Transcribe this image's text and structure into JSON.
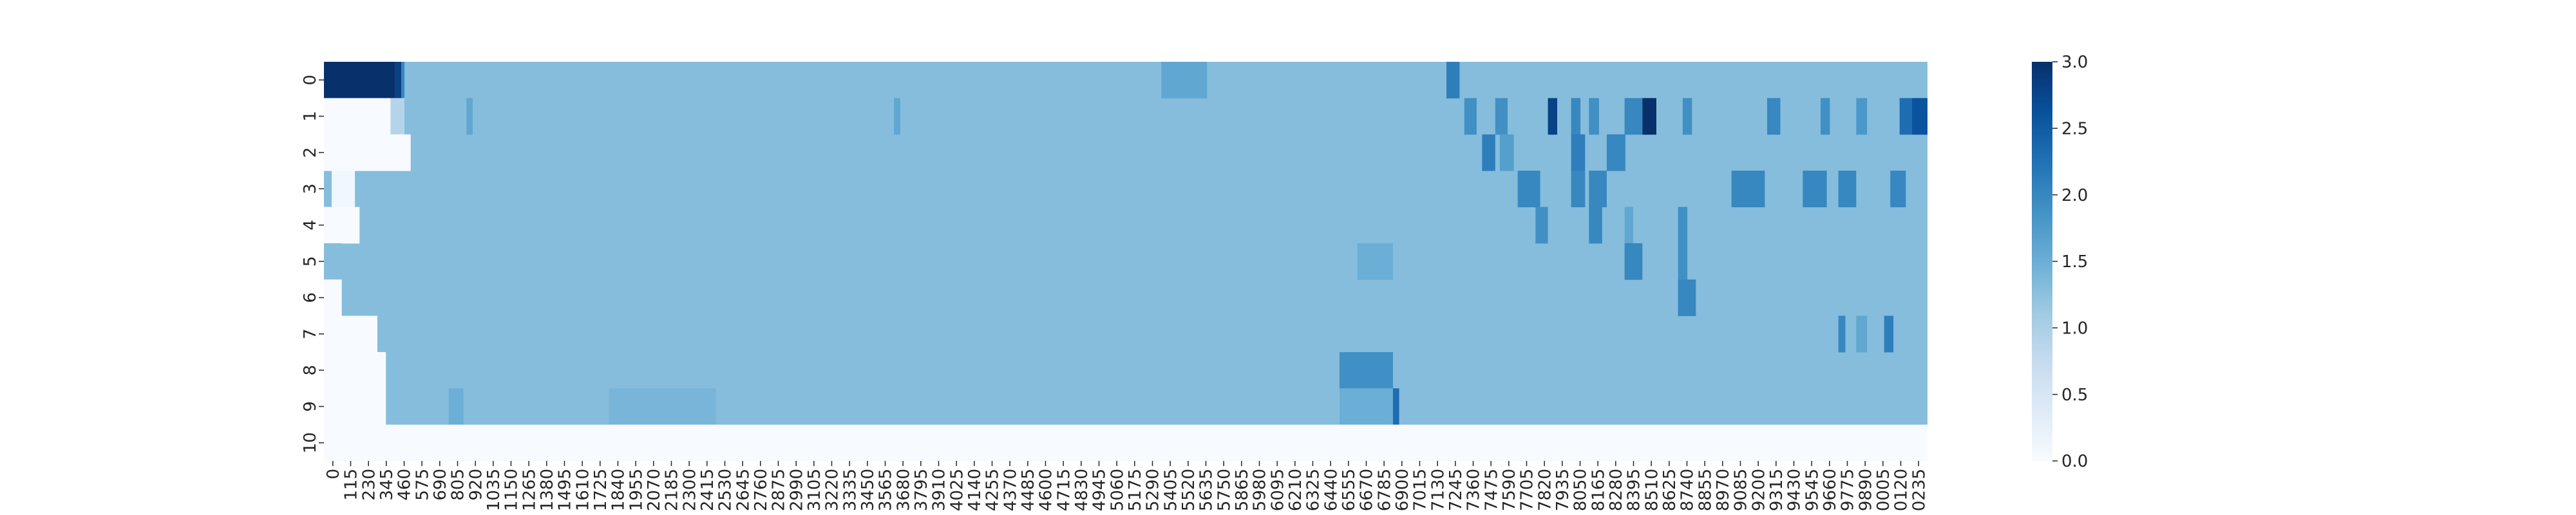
{
  "chart_data": {
    "type": "heatmap",
    "title": "",
    "xlabel": "",
    "ylabel": "",
    "rows": [
      "0",
      "1",
      "2",
      "3",
      "4",
      "5",
      "6",
      "7",
      "8",
      "9",
      "10"
    ],
    "x_tick_labels": [
      "0",
      "115",
      "230",
      "345",
      "460",
      "575",
      "690",
      "805",
      "920",
      "1035",
      "1150",
      "1265",
      "1380",
      "1495",
      "1610",
      "1725",
      "1840",
      "1955",
      "2070",
      "2185",
      "2300",
      "2415",
      "2530",
      "2645",
      "2760",
      "2875",
      "2990",
      "3105",
      "3220",
      "3335",
      "3450",
      "3565",
      "3680",
      "3795",
      "3910",
      "4025",
      "4140",
      "4255",
      "4370",
      "4485",
      "4600",
      "4715",
      "4830",
      "4945",
      "5060",
      "5175",
      "5290",
      "5405",
      "5520",
      "5635",
      "5750",
      "5865",
      "5980",
      "6095",
      "6210",
      "6325",
      "6440",
      "6555",
      "6670",
      "6785",
      "6900",
      "7015",
      "7130",
      "7245",
      "7360",
      "7475",
      "7590",
      "7705",
      "7820",
      "7935",
      "8050",
      "8165",
      "8280",
      "8395",
      "8510",
      "8625",
      "8740",
      "8855",
      "8970",
      "9085",
      "9200",
      "9315",
      "9430",
      "9545",
      "9660",
      "9775",
      "9890",
      "0005",
      "0120",
      "0235"
    ],
    "colorbar": {
      "min": 0.0,
      "max": 3.0,
      "ticks": [
        "0.0",
        "0.5",
        "1.0",
        "1.5",
        "2.0",
        "2.5",
        "3.0"
      ],
      "colormap": "Blues"
    },
    "baseline_value": 1.3,
    "leading_zero_cells": [
      0,
      0,
      0,
      0,
      0,
      0,
      0,
      0,
      0,
      0,
      0
    ],
    "segments": [
      {
        "row": 0,
        "from": 0,
        "to": 460,
        "value": 3.0
      },
      {
        "row": 0,
        "from": 460,
        "to": 500,
        "value": 2.8
      },
      {
        "row": 0,
        "from": 500,
        "to": 520,
        "value": 2.0
      },
      {
        "row": 0,
        "from": 5405,
        "to": 5700,
        "value": 1.6
      },
      {
        "row": 0,
        "from": 7245,
        "to": 7330,
        "value": 2.1
      },
      {
        "row": 1,
        "from": 0,
        "to": 430,
        "value": 0.0
      },
      {
        "row": 1,
        "from": 430,
        "to": 520,
        "value": 0.9
      },
      {
        "row": 1,
        "from": 920,
        "to": 960,
        "value": 1.6
      },
      {
        "row": 1,
        "from": 3680,
        "to": 3720,
        "value": 1.6
      },
      {
        "row": 1,
        "from": 7360,
        "to": 7440,
        "value": 1.9
      },
      {
        "row": 1,
        "from": 7560,
        "to": 7640,
        "value": 1.9
      },
      {
        "row": 1,
        "from": 7900,
        "to": 7960,
        "value": 2.8
      },
      {
        "row": 1,
        "from": 8050,
        "to": 8110,
        "value": 2.0
      },
      {
        "row": 1,
        "from": 8165,
        "to": 8230,
        "value": 1.9
      },
      {
        "row": 1,
        "from": 8395,
        "to": 8510,
        "value": 2.0
      },
      {
        "row": 1,
        "from": 8510,
        "to": 8600,
        "value": 3.0
      },
      {
        "row": 1,
        "from": 8770,
        "to": 8830,
        "value": 1.9
      },
      {
        "row": 1,
        "from": 9315,
        "to": 9400,
        "value": 2.0
      },
      {
        "row": 1,
        "from": 9660,
        "to": 9720,
        "value": 1.9
      },
      {
        "row": 1,
        "from": 9890,
        "to": 9960,
        "value": 1.8
      },
      {
        "row": 1,
        "from": 120,
        "to": 200,
        "value": 2.3,
        "segment_wraps": true
      },
      {
        "row": 1,
        "from": 200,
        "to": 300,
        "value": 2.6,
        "segment_wraps": true
      },
      {
        "row": 2,
        "from": 0,
        "to": 560,
        "value": 0.0
      },
      {
        "row": 2,
        "from": 7475,
        "to": 7560,
        "value": 2.1
      },
      {
        "row": 2,
        "from": 7590,
        "to": 7680,
        "value": 1.7
      },
      {
        "row": 2,
        "from": 8050,
        "to": 8140,
        "value": 2.1
      },
      {
        "row": 2,
        "from": 8280,
        "to": 8400,
        "value": 2.0
      },
      {
        "row": 3,
        "from": 50,
        "to": 200,
        "value": 0.1
      },
      {
        "row": 3,
        "from": 7705,
        "to": 7850,
        "value": 2.0
      },
      {
        "row": 3,
        "from": 8050,
        "to": 8140,
        "value": 2.0
      },
      {
        "row": 3,
        "from": 8165,
        "to": 8280,
        "value": 2.0
      },
      {
        "row": 3,
        "from": 9085,
        "to": 9300,
        "value": 2.0
      },
      {
        "row": 3,
        "from": 9545,
        "to": 9700,
        "value": 2.0
      },
      {
        "row": 3,
        "from": 9775,
        "to": 9890,
        "value": 2.0
      },
      {
        "row": 3,
        "from": 60,
        "to": 160,
        "value": 2.0,
        "segment_wraps": true
      },
      {
        "row": 4,
        "from": 0,
        "to": 230,
        "value": 0.0
      },
      {
        "row": 4,
        "from": 7820,
        "to": 7900,
        "value": 1.9
      },
      {
        "row": 4,
        "from": 8165,
        "to": 8250,
        "value": 2.0
      },
      {
        "row": 4,
        "from": 8395,
        "to": 8450,
        "value": 1.6
      },
      {
        "row": 4,
        "from": 8740,
        "to": 8800,
        "value": 1.9
      },
      {
        "row": 5,
        "from": 0,
        "to": 115,
        "value": 1.3
      },
      {
        "row": 5,
        "from": 6670,
        "to": 6900,
        "value": 1.5
      },
      {
        "row": 5,
        "from": 8395,
        "to": 8510,
        "value": 2.0
      },
      {
        "row": 5,
        "from": 8740,
        "to": 8800,
        "value": 1.9
      },
      {
        "row": 6,
        "from": 0,
        "to": 115,
        "value": 0.0
      },
      {
        "row": 6,
        "from": 8740,
        "to": 8855,
        "value": 2.0
      },
      {
        "row": 7,
        "from": 0,
        "to": 345,
        "value": 0.0
      },
      {
        "row": 7,
        "from": 9775,
        "to": 9820,
        "value": 2.0
      },
      {
        "row": 7,
        "from": 9890,
        "to": 9960,
        "value": 1.6
      },
      {
        "row": 7,
        "from": 20,
        "to": 80,
        "value": 2.1,
        "segment_wraps": true
      },
      {
        "row": 8,
        "from": 0,
        "to": 400,
        "value": 0.0
      },
      {
        "row": 8,
        "from": 6555,
        "to": 6900,
        "value": 1.9
      },
      {
        "row": 9,
        "from": 0,
        "to": 400,
        "value": 0.0
      },
      {
        "row": 9,
        "from": 805,
        "to": 900,
        "value": 1.5
      },
      {
        "row": 9,
        "from": 1840,
        "to": 2530,
        "value": 1.4
      },
      {
        "row": 9,
        "from": 6555,
        "to": 6900,
        "value": 1.5
      },
      {
        "row": 9,
        "from": 6900,
        "to": 6940,
        "value": 2.3
      },
      {
        "row": 10,
        "from": 0,
        "to": 99999,
        "value": 0.0
      }
    ]
  }
}
